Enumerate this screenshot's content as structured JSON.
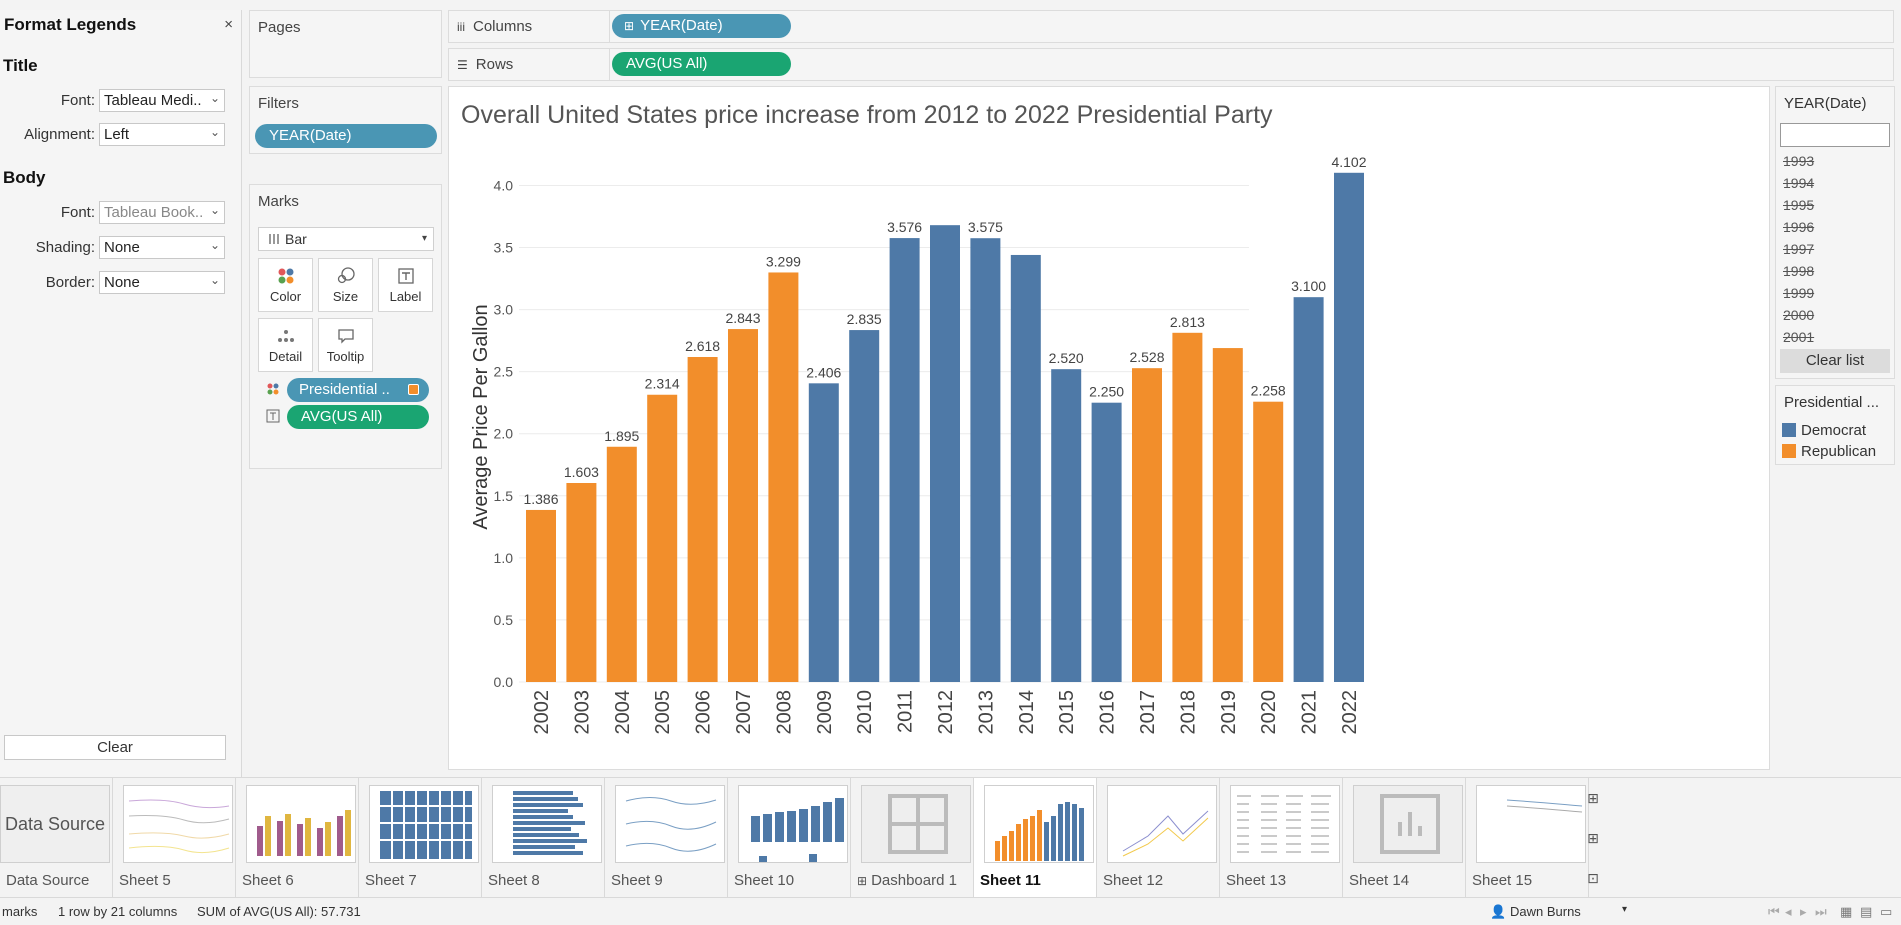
{
  "format_panel": {
    "title": "Format Legends",
    "close": "×",
    "title_section": "Title",
    "title_font_label": "Font:",
    "title_font_value": "Tableau Medi..",
    "alignment_label": "Alignment:",
    "alignment_value": "Left",
    "body_section": "Body",
    "body_font_label": "Font:",
    "body_font_value": "Tableau Book..",
    "shading_label": "Shading:",
    "shading_value": "None",
    "border_label": "Border:",
    "border_value": "None",
    "clear": "Clear"
  },
  "pages": {
    "title": "Pages"
  },
  "filters": {
    "title": "Filters",
    "pill": "YEAR(Date)"
  },
  "marks": {
    "title": "Marks",
    "type": "Bar",
    "buttons": [
      "Color",
      "Size",
      "Label",
      "Detail",
      "Tooltip"
    ],
    "color_pill": "Presidential ..",
    "label_pill": "AVG(US All)"
  },
  "shelves": {
    "columns_label": "Columns",
    "columns_pill": "YEAR(Date)",
    "rows_label": "Rows",
    "rows_pill": "AVG(US All)"
  },
  "year_filter": {
    "title": "YEAR(Date)",
    "years": [
      "1993",
      "1994",
      "1995",
      "1996",
      "1997",
      "1998",
      "1999",
      "2000",
      "2001"
    ],
    "clear": "Clear list"
  },
  "legend": {
    "title": "Presidential ...",
    "items": [
      {
        "label": "Democrat",
        "color": "#4e79a7"
      },
      {
        "label": "Republican",
        "color": "#f28e2b"
      }
    ]
  },
  "chart_data": {
    "type": "bar",
    "title": "Overall United States price increase from 2012 to 2022  Presidential Party",
    "ylabel": "Average Price Per Gallon",
    "xlabel": "",
    "ylim": [
      0,
      4.35
    ],
    "yticks": [
      "0.0",
      "0.5",
      "1.0",
      "1.5",
      "2.0",
      "2.5",
      "3.0",
      "3.5",
      "4.0"
    ],
    "categories": [
      "2002",
      "2003",
      "2004",
      "2005",
      "2006",
      "2007",
      "2008",
      "2009",
      "2010",
      "2011",
      "2012",
      "2013",
      "2014",
      "2015",
      "2016",
      "2017",
      "2018",
      "2019",
      "2020",
      "2021",
      "2022"
    ],
    "values": [
      1.386,
      1.603,
      1.895,
      2.314,
      2.618,
      2.843,
      3.299,
      2.406,
      2.835,
      3.576,
      3.68,
      3.575,
      3.44,
      2.52,
      2.25,
      2.528,
      2.813,
      2.69,
      2.258,
      3.1,
      4.102
    ],
    "labels": [
      "1.386",
      "1.603",
      "1.895",
      "2.314",
      "2.618",
      "2.843",
      "3.299",
      "2.406",
      "2.835",
      "3.576",
      "",
      "3.575",
      "",
      "2.520",
      "2.250",
      "2.528",
      "2.813",
      "",
      "2.258",
      "3.100",
      "4.102"
    ],
    "party": [
      "Republican",
      "Republican",
      "Republican",
      "Republican",
      "Republican",
      "Republican",
      "Republican",
      "Democrat",
      "Democrat",
      "Democrat",
      "Democrat",
      "Democrat",
      "Democrat",
      "Democrat",
      "Democrat",
      "Republican",
      "Republican",
      "Republican",
      "Republican",
      "Democrat",
      "Democrat"
    ],
    "colors": {
      "Democrat": "#4e79a7",
      "Republican": "#f28e2b"
    },
    "grid": true
  },
  "tabs": [
    {
      "label": "Data Source",
      "thumb_text": "Data Source"
    },
    {
      "label": "Sheet 5"
    },
    {
      "label": "Sheet 6"
    },
    {
      "label": "Sheet 7"
    },
    {
      "label": "Sheet 8"
    },
    {
      "label": "Sheet 9"
    },
    {
      "label": "Sheet 10"
    },
    {
      "label": "Dashboard 1"
    },
    {
      "label": "Sheet 11"
    },
    {
      "label": "Sheet 12"
    },
    {
      "label": "Sheet 13"
    },
    {
      "label": "Sheet 14"
    },
    {
      "label": "Sheet 15"
    }
  ],
  "status": {
    "marks": "marks",
    "dims": "1 row by 21 columns",
    "sum": "SUM of AVG(US All): 57.731",
    "user": "Dawn Burns"
  }
}
